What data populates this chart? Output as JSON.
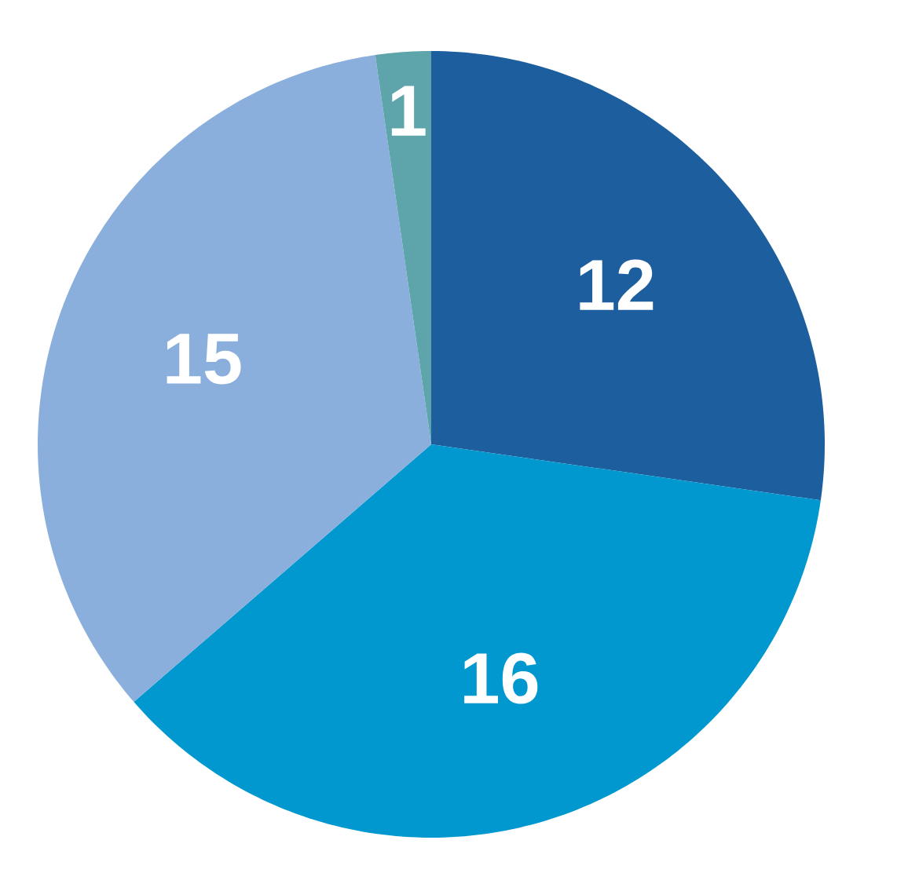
{
  "chart_data": {
    "type": "pie",
    "categories": [
      null,
      null,
      null,
      null
    ],
    "values": [
      12,
      16,
      15,
      1
    ],
    "colors": [
      "#1c5e9e",
      "#0098cf",
      "#8aafdc",
      "#5da5ab"
    ],
    "data_labels": true
  }
}
